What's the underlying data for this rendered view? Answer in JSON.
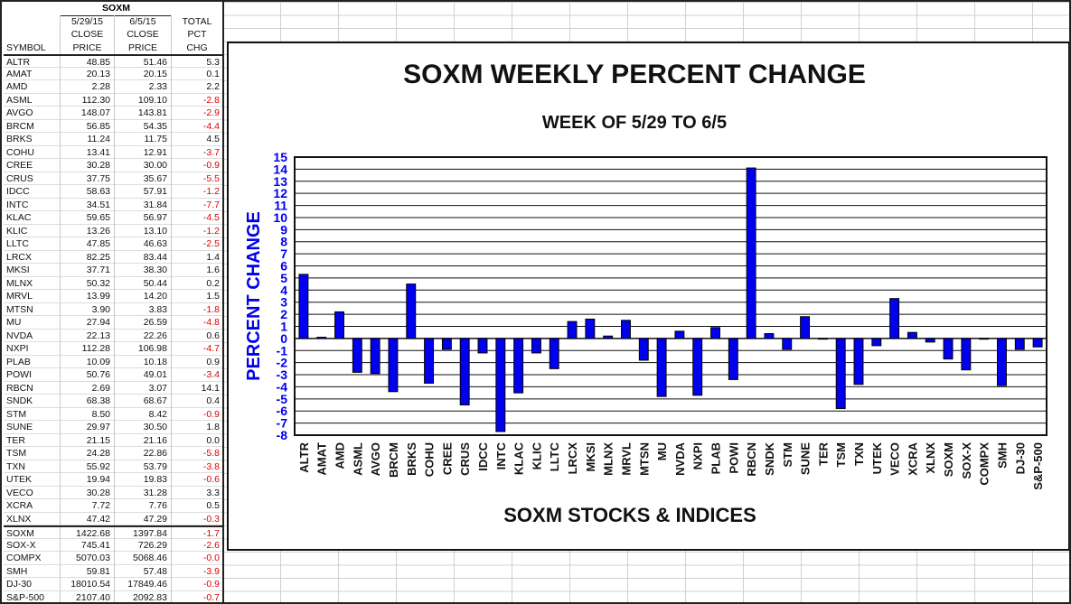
{
  "table": {
    "title": "SOXM",
    "header_lines": [
      [
        "",
        "5/29/15",
        "6/5/15",
        "TOTAL"
      ],
      [
        "",
        "CLOSE",
        "CLOSE",
        "PCT"
      ],
      [
        "SYMBOL",
        "PRICE",
        "PRICE",
        "CHG"
      ]
    ],
    "rows": [
      [
        "ALTR",
        "48.85",
        "51.46",
        "5.3"
      ],
      [
        "AMAT",
        "20.13",
        "20.15",
        "0.1"
      ],
      [
        "AMD",
        "2.28",
        "2.33",
        "2.2"
      ],
      [
        "ASML",
        "112.30",
        "109.10",
        "-2.8"
      ],
      [
        "AVGO",
        "148.07",
        "143.81",
        "-2.9"
      ],
      [
        "BRCM",
        "56.85",
        "54.35",
        "-4.4"
      ],
      [
        "BRKS",
        "11.24",
        "11.75",
        "4.5"
      ],
      [
        "COHU",
        "13.41",
        "12.91",
        "-3.7"
      ],
      [
        "CREE",
        "30.28",
        "30.00",
        "-0.9"
      ],
      [
        "CRUS",
        "37.75",
        "35.67",
        "-5.5"
      ],
      [
        "IDCC",
        "58.63",
        "57.91",
        "-1.2"
      ],
      [
        "INTC",
        "34.51",
        "31.84",
        "-7.7"
      ],
      [
        "KLAC",
        "59.65",
        "56.97",
        "-4.5"
      ],
      [
        "KLIC",
        "13.26",
        "13.10",
        "-1.2"
      ],
      [
        "LLTC",
        "47.85",
        "46.63",
        "-2.5"
      ],
      [
        "LRCX",
        "82.25",
        "83.44",
        "1.4"
      ],
      [
        "MKSI",
        "37.71",
        "38.30",
        "1.6"
      ],
      [
        "MLNX",
        "50.32",
        "50.44",
        "0.2"
      ],
      [
        "MRVL",
        "13.99",
        "14.20",
        "1.5"
      ],
      [
        "MTSN",
        "3.90",
        "3.83",
        "-1.8"
      ],
      [
        "MU",
        "27.94",
        "26.59",
        "-4.8"
      ],
      [
        "NVDA",
        "22.13",
        "22.26",
        "0.6"
      ],
      [
        "NXPI",
        "112.28",
        "106.98",
        "-4.7"
      ],
      [
        "PLAB",
        "10.09",
        "10.18",
        "0.9"
      ],
      [
        "POWI",
        "50.76",
        "49.01",
        "-3.4"
      ],
      [
        "RBCN",
        "2.69",
        "3.07",
        "14.1"
      ],
      [
        "SNDK",
        "68.38",
        "68.67",
        "0.4"
      ],
      [
        "STM",
        "8.50",
        "8.42",
        "-0.9"
      ],
      [
        "SUNE",
        "29.97",
        "30.50",
        "1.8"
      ],
      [
        "TER",
        "21.15",
        "21.16",
        "0.0"
      ],
      [
        "TSM",
        "24.28",
        "22.86",
        "-5.8"
      ],
      [
        "TXN",
        "55.92",
        "53.79",
        "-3.8"
      ],
      [
        "UTEK",
        "19.94",
        "19.83",
        "-0.6"
      ],
      [
        "VECO",
        "30.28",
        "31.28",
        "3.3"
      ],
      [
        "XCRA",
        "7.72",
        "7.76",
        "0.5"
      ],
      [
        "XLNX",
        "47.42",
        "47.29",
        "-0.3"
      ]
    ],
    "index_rows": [
      [
        "SOXM",
        "1422.68",
        "1397.84",
        "-1.7"
      ],
      [
        "SOX-X",
        "745.41",
        "726.29",
        "-2.6"
      ],
      [
        "COMPX",
        "5070.03",
        "5068.46",
        "-0.0"
      ],
      [
        "SMH",
        "59.81",
        "57.48",
        "-3.9"
      ],
      [
        "DJ-30",
        "18010.54",
        "17849.46",
        "-0.9"
      ],
      [
        "S&P-500",
        "2107.40",
        "2092.83",
        "-0.7"
      ]
    ]
  },
  "chart_data": {
    "type": "bar",
    "title": "SOXM WEEKLY PERCENT CHANGE",
    "subtitle": "WEEK OF 5/29 TO 6/5",
    "xlabel": "SOXM STOCKS & INDICES",
    "ylabel": "PERCENT CHANGE",
    "ylim": [
      -8,
      15
    ],
    "yticks": [
      15,
      14,
      13,
      12,
      11,
      10,
      9,
      8,
      7,
      6,
      5,
      4,
      3,
      2,
      1,
      0,
      -1,
      -2,
      -3,
      -4,
      -5,
      -6,
      -7,
      -8
    ],
    "grid": true,
    "categories": [
      "ALTR",
      "AMAT",
      "AMD",
      "ASML",
      "AVGO",
      "BRCM",
      "BRKS",
      "COHU",
      "CREE",
      "CRUS",
      "IDCC",
      "INTC",
      "KLAC",
      "KLIC",
      "LLTC",
      "LRCX",
      "MKSI",
      "MLNX",
      "MRVL",
      "MTSN",
      "MU",
      "NVDA",
      "NXPI",
      "PLAB",
      "POWI",
      "RBCN",
      "SNDK",
      "STM",
      "SUNE",
      "TER",
      "TSM",
      "TXN",
      "UTEK",
      "VECO",
      "XCRA",
      "XLNX",
      "SOXM",
      "SOX-X",
      "COMPX",
      "SMH",
      "DJ-30",
      "S&P-500"
    ],
    "values": [
      5.3,
      0.1,
      2.2,
      -2.8,
      -2.9,
      -4.4,
      4.5,
      -3.7,
      -0.9,
      -5.5,
      -1.2,
      -7.7,
      -4.5,
      -1.2,
      -2.5,
      1.4,
      1.6,
      0.2,
      1.5,
      -1.8,
      -4.8,
      0.6,
      -4.7,
      0.9,
      -3.4,
      14.1,
      0.4,
      -0.9,
      1.8,
      0.0,
      -5.8,
      -3.8,
      -0.6,
      3.3,
      0.5,
      -0.3,
      -1.7,
      -2.6,
      -0.0,
      -3.9,
      -0.9,
      -0.7
    ],
    "colors": {
      "bar": "#0000ee",
      "axis_label": "#0000ee",
      "negative_text": "#e00000"
    }
  }
}
